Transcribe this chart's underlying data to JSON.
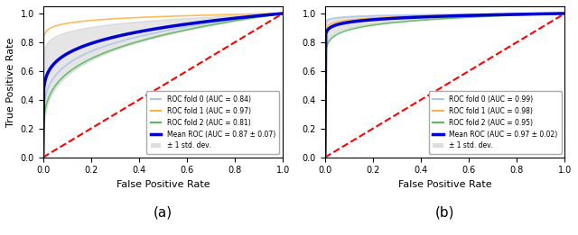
{
  "panel_a": {
    "fold0_auc": 0.84,
    "fold1_auc": 0.97,
    "fold2_auc": 0.81,
    "mean_auc": 0.87,
    "std_auc": 0.07,
    "fold0_color": "#aec6e8",
    "fold1_color": "#ffb347",
    "fold2_color": "#5cb85c",
    "mean_color": "#0000cc",
    "std_color": "#aaaaaa",
    "diagonal_color": "red",
    "legend_labels": [
      "ROC fold 0 (AUC = 0.84)",
      "ROC fold 1 (AUC = 0.97)",
      "ROC fold 2 (AUC = 0.81)",
      "Mean ROC (AUC = 0.87 ± 0.07)",
      "± 1 std. dev."
    ],
    "xlabel": "False Positive Rate",
    "ylabel": "True Positive Rate",
    "label": "(a)",
    "show_ylabel": true
  },
  "panel_b": {
    "fold0_auc": 0.99,
    "fold1_auc": 0.98,
    "fold2_auc": 0.95,
    "mean_auc": 0.97,
    "std_auc": 0.02,
    "fold0_color": "#aec6e8",
    "fold1_color": "#ffb347",
    "fold2_color": "#5cb85c",
    "mean_color": "#0000cc",
    "std_color": "#aaaaaa",
    "diagonal_color": "red",
    "legend_labels": [
      "ROC fold 0 (AUC = 0.99)",
      "ROC fold 1 (AUC = 0.98)",
      "ROC fold 2 (AUC = 0.95)",
      "Mean ROC (AUC = 0.97 ± 0.02)",
      "± 1 std. dev."
    ],
    "xlabel": "False Positive Rate",
    "ylabel": "True Positive Rate",
    "label": "(b)",
    "show_ylabel": false
  },
  "figsize": [
    6.4,
    2.61
  ],
  "dpi": 100
}
